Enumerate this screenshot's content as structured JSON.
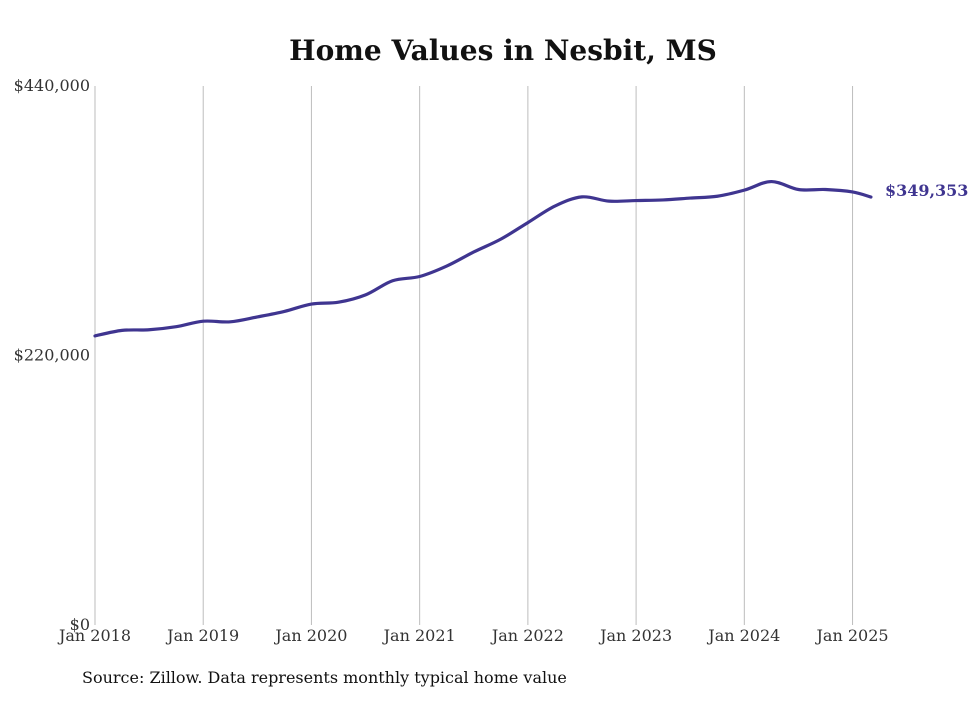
{
  "chart_data": {
    "type": "line",
    "title": "Home Values in Nesbit, MS",
    "xlabel": "",
    "ylabel": "",
    "y_ticks": [
      {
        "value": 440000,
        "label": "$440,000"
      },
      {
        "value": 220000,
        "label": "$220,000"
      },
      {
        "value": 0,
        "label": "$0"
      }
    ],
    "x_ticks": [
      {
        "value": 2018.0,
        "label": "Jan 2018"
      },
      {
        "value": 2019.0,
        "label": "Jan 2019"
      },
      {
        "value": 2020.0,
        "label": "Jan 2020"
      },
      {
        "value": 2021.0,
        "label": "Jan 2021"
      },
      {
        "value": 2022.0,
        "label": "Jan 2022"
      },
      {
        "value": 2023.0,
        "label": "Jan 2023"
      },
      {
        "value": 2024.0,
        "label": "Jan 2024"
      },
      {
        "value": 2025.0,
        "label": "Jan 2025"
      }
    ],
    "xlim": [
      2017.88,
      2025.42
    ],
    "ylim": [
      0,
      440000
    ],
    "grid": {
      "vertical": true,
      "horizontal": false
    },
    "series": [
      {
        "color": "#3f3590",
        "end_label": "$349,353",
        "points": [
          {
            "x": 2018.0,
            "y": 236000
          },
          {
            "x": 2018.25,
            "y": 240500
          },
          {
            "x": 2018.5,
            "y": 241000
          },
          {
            "x": 2018.75,
            "y": 243500
          },
          {
            "x": 2019.0,
            "y": 248000
          },
          {
            "x": 2019.25,
            "y": 247500
          },
          {
            "x": 2019.5,
            "y": 251500
          },
          {
            "x": 2019.75,
            "y": 256000
          },
          {
            "x": 2020.0,
            "y": 262000
          },
          {
            "x": 2020.25,
            "y": 263500
          },
          {
            "x": 2020.5,
            "y": 269500
          },
          {
            "x": 2020.75,
            "y": 281000
          },
          {
            "x": 2021.0,
            "y": 284500
          },
          {
            "x": 2021.25,
            "y": 293000
          },
          {
            "x": 2021.5,
            "y": 304500
          },
          {
            "x": 2021.75,
            "y": 315000
          },
          {
            "x": 2022.0,
            "y": 328500
          },
          {
            "x": 2022.25,
            "y": 342000
          },
          {
            "x": 2022.5,
            "y": 349500
          },
          {
            "x": 2022.75,
            "y": 346000
          },
          {
            "x": 2023.0,
            "y": 346500
          },
          {
            "x": 2023.25,
            "y": 347000
          },
          {
            "x": 2023.5,
            "y": 348500
          },
          {
            "x": 2023.75,
            "y": 350000
          },
          {
            "x": 2024.0,
            "y": 355000
          },
          {
            "x": 2024.25,
            "y": 362000
          },
          {
            "x": 2024.5,
            "y": 355500
          },
          {
            "x": 2024.75,
            "y": 355500
          },
          {
            "x": 2025.0,
            "y": 353500
          },
          {
            "x": 2025.17,
            "y": 349353
          }
        ]
      }
    ]
  },
  "footer": {
    "source": "Source: Zillow. Data represents monthly typical home value"
  }
}
